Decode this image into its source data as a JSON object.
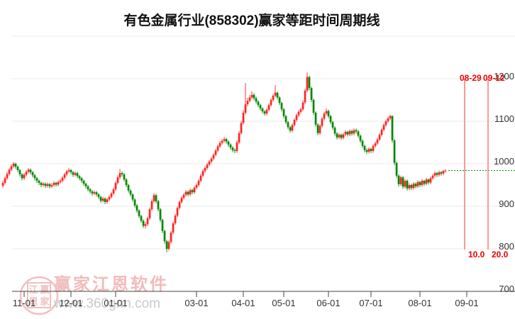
{
  "title": "有色金属行业(858302)赢家等距时间周期线",
  "watermark": {
    "seal_chars": [
      "江",
      "赢",
      "恩",
      "家"
    ],
    "brand": "赢家江恩软件",
    "url": "www.360gnn.com",
    "seal_color": "#eec1c1",
    "brand_color": "#f0bcbc",
    "url_color": "#c9c9c9"
  },
  "chart_data": {
    "type": "candlestick",
    "title": "有色金属行业(858302)赢家等距时间周期线",
    "xlabel": "",
    "ylabel": "",
    "ylim": [
      700,
      1300
    ],
    "grid_values": [
      1300,
      1200,
      1100,
      1000,
      900,
      800,
      700
    ],
    "y_ticks": [
      1200,
      1100,
      1000,
      900,
      800,
      700
    ],
    "x_ticks": [
      {
        "label": "11-01",
        "index": 10
      },
      {
        "label": "12-01",
        "index": 32
      },
      {
        "label": "01-01",
        "index": 53
      },
      {
        "label": "03-01",
        "index": 91
      },
      {
        "label": "04-01",
        "index": 113
      },
      {
        "label": "05-01",
        "index": 132
      },
      {
        "label": "06-01",
        "index": 153
      },
      {
        "label": "07-01",
        "index": 173
      },
      {
        "label": "08-01",
        "index": 196
      },
      {
        "label": "09-01",
        "index": 218
      }
    ],
    "up_color": "#fe2222",
    "down_color": "#008800",
    "grid_color": "#e9e9e9",
    "axis_color": "#444444",
    "label_color": "#333333",
    "cycle_lines": {
      "color": "#ff8d8d",
      "label_color": "#ee0000",
      "value_top": 1200,
      "value_bottom": 800,
      "lines": [
        {
          "top_label": "08-29",
          "bottom_label": "10.0",
          "index": 217
        },
        {
          "top_label": "09-12",
          "bottom_label": "20.0",
          "index": 228
        }
      ]
    },
    "last_price_line": {
      "value": 984,
      "color": "#008800"
    },
    "candles": [
      [
        948,
        960,
        944,
        955
      ],
      [
        955,
        970,
        951,
        966
      ],
      [
        966,
        981,
        962,
        976
      ],
      [
        976,
        990,
        972,
        986
      ],
      [
        986,
        999,
        982,
        994
      ],
      [
        994,
        1004,
        990,
        1000
      ],
      [
        1000,
        1003,
        988,
        993
      ],
      [
        993,
        996,
        980,
        985
      ],
      [
        985,
        988,
        970,
        975
      ],
      [
        975,
        978,
        961,
        966
      ],
      [
        966,
        978,
        962,
        974
      ],
      [
        974,
        985,
        970,
        981
      ],
      [
        981,
        990,
        977,
        986
      ],
      [
        986,
        989,
        975,
        980
      ],
      [
        980,
        983,
        968,
        973
      ],
      [
        973,
        976,
        961,
        966
      ],
      [
        966,
        969,
        955,
        960
      ],
      [
        960,
        963,
        950,
        955
      ],
      [
        955,
        958,
        945,
        950
      ],
      [
        950,
        957,
        946,
        953
      ],
      [
        953,
        956,
        943,
        948
      ],
      [
        948,
        956,
        944,
        952
      ],
      [
        952,
        955,
        942,
        947
      ],
      [
        947,
        954,
        943,
        950
      ],
      [
        950,
        959,
        946,
        955
      ],
      [
        955,
        958,
        946,
        951
      ],
      [
        951,
        961,
        947,
        957
      ],
      [
        957,
        964,
        953,
        960
      ],
      [
        960,
        971,
        956,
        967
      ],
      [
        967,
        979,
        963,
        975
      ],
      [
        975,
        986,
        971,
        982
      ],
      [
        982,
        990,
        978,
        985
      ],
      [
        985,
        988,
        975,
        980
      ],
      [
        980,
        983,
        969,
        974
      ],
      [
        974,
        982,
        970,
        978
      ],
      [
        978,
        981,
        966,
        971
      ],
      [
        971,
        974,
        961,
        966
      ],
      [
        966,
        969,
        955,
        960
      ],
      [
        960,
        963,
        948,
        953
      ],
      [
        953,
        956,
        942,
        947
      ],
      [
        947,
        950,
        935,
        940
      ],
      [
        940,
        943,
        930,
        935
      ],
      [
        935,
        938,
        925,
        930
      ],
      [
        930,
        937,
        926,
        933
      ],
      [
        933,
        936,
        923,
        928
      ],
      [
        928,
        931,
        917,
        922
      ],
      [
        922,
        925,
        908,
        913
      ],
      [
        913,
        922,
        909,
        918
      ],
      [
        918,
        921,
        905,
        910
      ],
      [
        910,
        920,
        906,
        916
      ],
      [
        916,
        926,
        912,
        922
      ],
      [
        922,
        934,
        918,
        930
      ],
      [
        930,
        944,
        926,
        940
      ],
      [
        940,
        960,
        936,
        955
      ],
      [
        955,
        973,
        951,
        968
      ],
      [
        968,
        988,
        964,
        978
      ],
      [
        978,
        982,
        970,
        975
      ],
      [
        975,
        978,
        958,
        963
      ],
      [
        963,
        966,
        945,
        950
      ],
      [
        950,
        953,
        932,
        937
      ],
      [
        937,
        940,
        923,
        928
      ],
      [
        928,
        931,
        911,
        916
      ],
      [
        916,
        919,
        897,
        902
      ],
      [
        902,
        905,
        885,
        890
      ],
      [
        890,
        893,
        872,
        877
      ],
      [
        877,
        880,
        861,
        866
      ],
      [
        866,
        869,
        849,
        854
      ],
      [
        854,
        863,
        848,
        858
      ],
      [
        858,
        876,
        853,
        872
      ],
      [
        872,
        897,
        868,
        893
      ],
      [
        893,
        916,
        889,
        912
      ],
      [
        912,
        931,
        908,
        926
      ],
      [
        926,
        929,
        907,
        912
      ],
      [
        912,
        915,
        888,
        893
      ],
      [
        893,
        896,
        863,
        868
      ],
      [
        868,
        871,
        837,
        842
      ],
      [
        842,
        845,
        812,
        818
      ],
      [
        818,
        821,
        792,
        800
      ],
      [
        800,
        820,
        796,
        816
      ],
      [
        816,
        842,
        812,
        838
      ],
      [
        838,
        864,
        834,
        860
      ],
      [
        860,
        882,
        856,
        878
      ],
      [
        878,
        900,
        874,
        896
      ],
      [
        896,
        914,
        892,
        910
      ],
      [
        910,
        924,
        906,
        920
      ],
      [
        920,
        931,
        916,
        927
      ],
      [
        927,
        938,
        923,
        934
      ],
      [
        934,
        937,
        923,
        928
      ],
      [
        928,
        942,
        924,
        938
      ],
      [
        938,
        941,
        928,
        933
      ],
      [
        933,
        948,
        929,
        944
      ],
      [
        944,
        954,
        940,
        950
      ],
      [
        950,
        964,
        946,
        960
      ],
      [
        960,
        976,
        956,
        972
      ],
      [
        972,
        987,
        968,
        983
      ],
      [
        983,
        994,
        979,
        990
      ],
      [
        990,
        1002,
        986,
        998
      ],
      [
        998,
        1009,
        994,
        1005
      ],
      [
        1005,
        1016,
        1001,
        1012
      ],
      [
        1012,
        1025,
        1008,
        1021
      ],
      [
        1021,
        1035,
        1017,
        1031
      ],
      [
        1031,
        1045,
        1027,
        1041
      ],
      [
        1041,
        1053,
        1037,
        1049
      ],
      [
        1049,
        1058,
        1045,
        1054
      ],
      [
        1054,
        1063,
        1050,
        1058
      ],
      [
        1058,
        1061,
        1047,
        1052
      ],
      [
        1052,
        1055,
        1040,
        1045
      ],
      [
        1045,
        1048,
        1033,
        1038
      ],
      [
        1038,
        1041,
        1027,
        1032
      ],
      [
        1032,
        1036,
        1025,
        1030
      ],
      [
        1030,
        1055,
        1026,
        1050
      ],
      [
        1050,
        1077,
        1046,
        1072
      ],
      [
        1072,
        1101,
        1068,
        1096
      ],
      [
        1096,
        1126,
        1092,
        1120
      ],
      [
        1120,
        1190,
        1116,
        1140
      ],
      [
        1140,
        1155,
        1135,
        1148
      ],
      [
        1148,
        1162,
        1144,
        1156
      ],
      [
        1156,
        1170,
        1152,
        1162
      ],
      [
        1162,
        1166,
        1149,
        1154
      ],
      [
        1154,
        1158,
        1141,
        1146
      ],
      [
        1146,
        1149,
        1133,
        1138
      ],
      [
        1138,
        1141,
        1125,
        1130
      ],
      [
        1130,
        1133,
        1118,
        1123
      ],
      [
        1123,
        1126,
        1113,
        1118
      ],
      [
        1118,
        1131,
        1114,
        1127
      ],
      [
        1127,
        1142,
        1123,
        1138
      ],
      [
        1138,
        1154,
        1134,
        1150
      ],
      [
        1150,
        1164,
        1146,
        1160
      ],
      [
        1160,
        1185,
        1156,
        1167
      ],
      [
        1167,
        1170,
        1151,
        1156
      ],
      [
        1156,
        1159,
        1138,
        1143
      ],
      [
        1143,
        1146,
        1123,
        1128
      ],
      [
        1128,
        1131,
        1107,
        1112
      ],
      [
        1112,
        1115,
        1093,
        1098
      ],
      [
        1098,
        1101,
        1081,
        1086
      ],
      [
        1086,
        1089,
        1073,
        1078
      ],
      [
        1078,
        1095,
        1074,
        1091
      ],
      [
        1091,
        1107,
        1087,
        1103
      ],
      [
        1103,
        1118,
        1099,
        1114
      ],
      [
        1114,
        1126,
        1110,
        1122
      ],
      [
        1122,
        1132,
        1118,
        1128
      ],
      [
        1128,
        1149,
        1124,
        1144
      ],
      [
        1144,
        1177,
        1140,
        1172
      ],
      [
        1172,
        1215,
        1168,
        1204
      ],
      [
        1204,
        1207,
        1173,
        1178
      ],
      [
        1178,
        1181,
        1145,
        1150
      ],
      [
        1150,
        1153,
        1115,
        1120
      ],
      [
        1120,
        1123,
        1087,
        1092
      ],
      [
        1092,
        1095,
        1067,
        1072
      ],
      [
        1072,
        1093,
        1068,
        1089
      ],
      [
        1089,
        1110,
        1085,
        1106
      ],
      [
        1106,
        1122,
        1102,
        1118
      ],
      [
        1118,
        1130,
        1114,
        1124
      ],
      [
        1124,
        1127,
        1107,
        1112
      ],
      [
        1112,
        1115,
        1093,
        1098
      ],
      [
        1098,
        1101,
        1080,
        1085
      ],
      [
        1085,
        1088,
        1066,
        1071
      ],
      [
        1071,
        1074,
        1057,
        1062
      ],
      [
        1062,
        1072,
        1058,
        1068
      ],
      [
        1068,
        1071,
        1056,
        1061
      ],
      [
        1061,
        1073,
        1057,
        1069
      ],
      [
        1069,
        1079,
        1065,
        1075
      ],
      [
        1075,
        1078,
        1064,
        1069
      ],
      [
        1069,
        1081,
        1065,
        1077
      ],
      [
        1077,
        1080,
        1066,
        1071
      ],
      [
        1071,
        1083,
        1067,
        1079
      ],
      [
        1079,
        1083,
        1071,
        1076
      ],
      [
        1076,
        1079,
        1061,
        1066
      ],
      [
        1066,
        1069,
        1049,
        1054
      ],
      [
        1054,
        1057,
        1037,
        1042
      ],
      [
        1042,
        1045,
        1027,
        1032
      ],
      [
        1032,
        1036,
        1023,
        1028
      ],
      [
        1028,
        1039,
        1024,
        1035
      ],
      [
        1035,
        1038,
        1025,
        1030
      ],
      [
        1030,
        1046,
        1026,
        1042
      ],
      [
        1042,
        1052,
        1038,
        1048
      ],
      [
        1048,
        1061,
        1044,
        1057
      ],
      [
        1057,
        1072,
        1053,
        1068
      ],
      [
        1068,
        1084,
        1064,
        1080
      ],
      [
        1080,
        1095,
        1076,
        1091
      ],
      [
        1091,
        1104,
        1087,
        1100
      ],
      [
        1100,
        1111,
        1096,
        1107
      ],
      [
        1107,
        1116,
        1103,
        1112
      ],
      [
        1112,
        1114,
        1050,
        1055
      ],
      [
        1055,
        1058,
        997,
        1002
      ],
      [
        1002,
        1005,
        967,
        972
      ],
      [
        972,
        975,
        946,
        952
      ],
      [
        952,
        972,
        948,
        968
      ],
      [
        968,
        971,
        941,
        946
      ],
      [
        946,
        964,
        942,
        960
      ],
      [
        960,
        963,
        937,
        942
      ],
      [
        942,
        954,
        938,
        950
      ],
      [
        950,
        953,
        938,
        943
      ],
      [
        943,
        957,
        939,
        953
      ],
      [
        953,
        956,
        942,
        947
      ],
      [
        947,
        961,
        943,
        957
      ],
      [
        957,
        960,
        945,
        950
      ],
      [
        950,
        964,
        946,
        960
      ],
      [
        960,
        962,
        948,
        953
      ],
      [
        953,
        967,
        949,
        963
      ],
      [
        963,
        965,
        951,
        956
      ],
      [
        956,
        970,
        952,
        966
      ],
      [
        966,
        976,
        962,
        972
      ],
      [
        972,
        982,
        968,
        978
      ],
      [
        978,
        981,
        969,
        974
      ],
      [
        974,
        984,
        970,
        980
      ],
      [
        980,
        983,
        972,
        977
      ],
      [
        977,
        986,
        973,
        983
      ],
      [
        983,
        987,
        979,
        984
      ]
    ]
  }
}
